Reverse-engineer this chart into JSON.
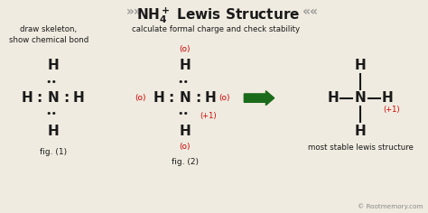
{
  "bg_color": "#f0ebe0",
  "text_color": "#1a1a1a",
  "red_color": "#cc0000",
  "green_color": "#1a6b1a",
  "gray_color": "#888888",
  "label_draw": "draw skeleton,\nshow chemical bond",
  "label_calc": "calculate formal charge and check stability",
  "label_stable": "most stable lewis structure",
  "fig1": "fig. (1)",
  "fig2": "fig. (2)",
  "copyright": "© Rootmemory.com",
  "title_left": "»»",
  "title_main": "NH",
  "title_right": "««"
}
